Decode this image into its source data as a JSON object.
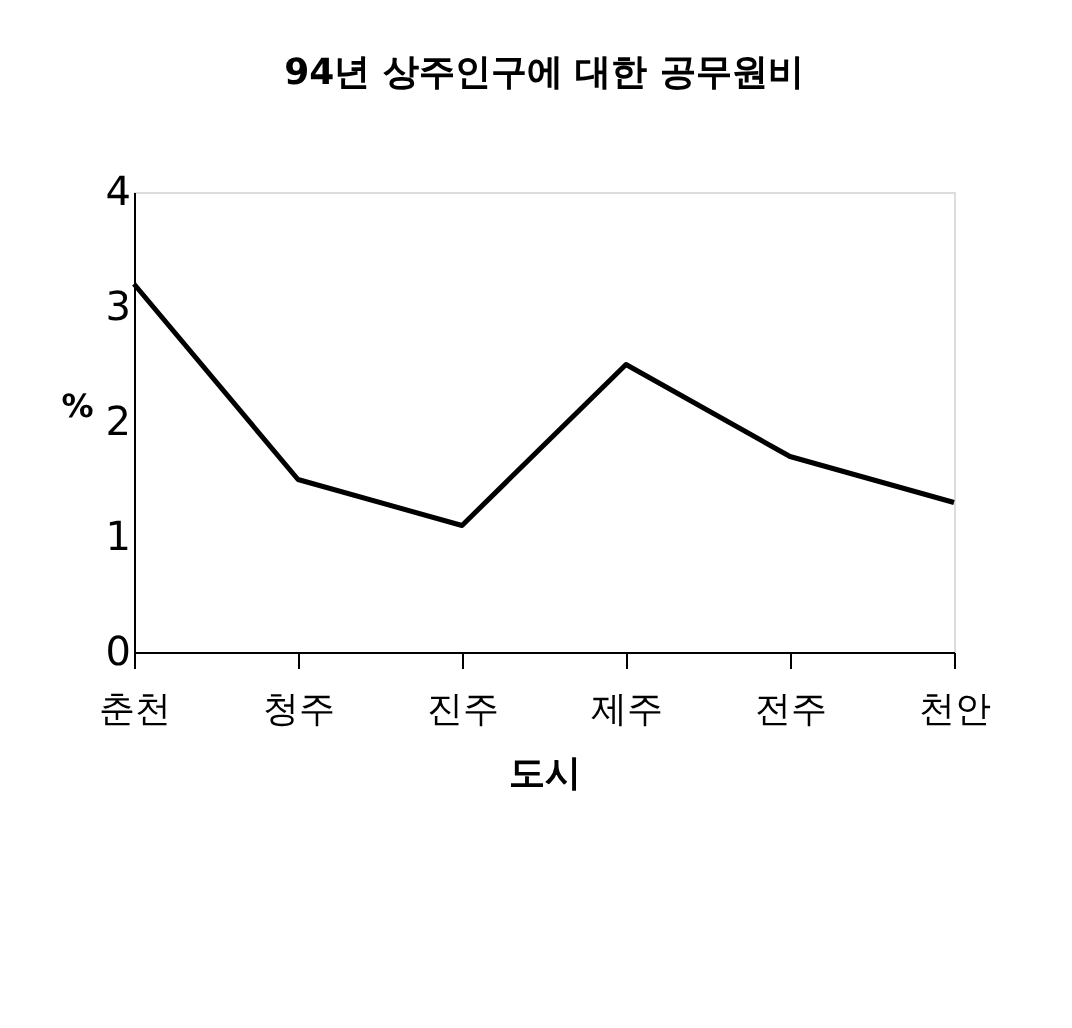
{
  "chart_data": {
    "type": "line",
    "title": "94년 상주인구에 대한 공무원비",
    "categories": [
      "춘천",
      "청주",
      "진주",
      "제주",
      "전주",
      "천안"
    ],
    "series": [
      {
        "color": "#000000",
        "values": [
          3.2,
          1.5,
          1.1,
          2.5,
          1.7,
          1.3
        ]
      }
    ],
    "xlabel": "도시",
    "ylabel": "%",
    "ylim": [
      0,
      4
    ],
    "yticks": [
      0,
      1,
      2,
      3,
      4
    ],
    "grid": false,
    "marker": "none",
    "line_style": "solid"
  }
}
